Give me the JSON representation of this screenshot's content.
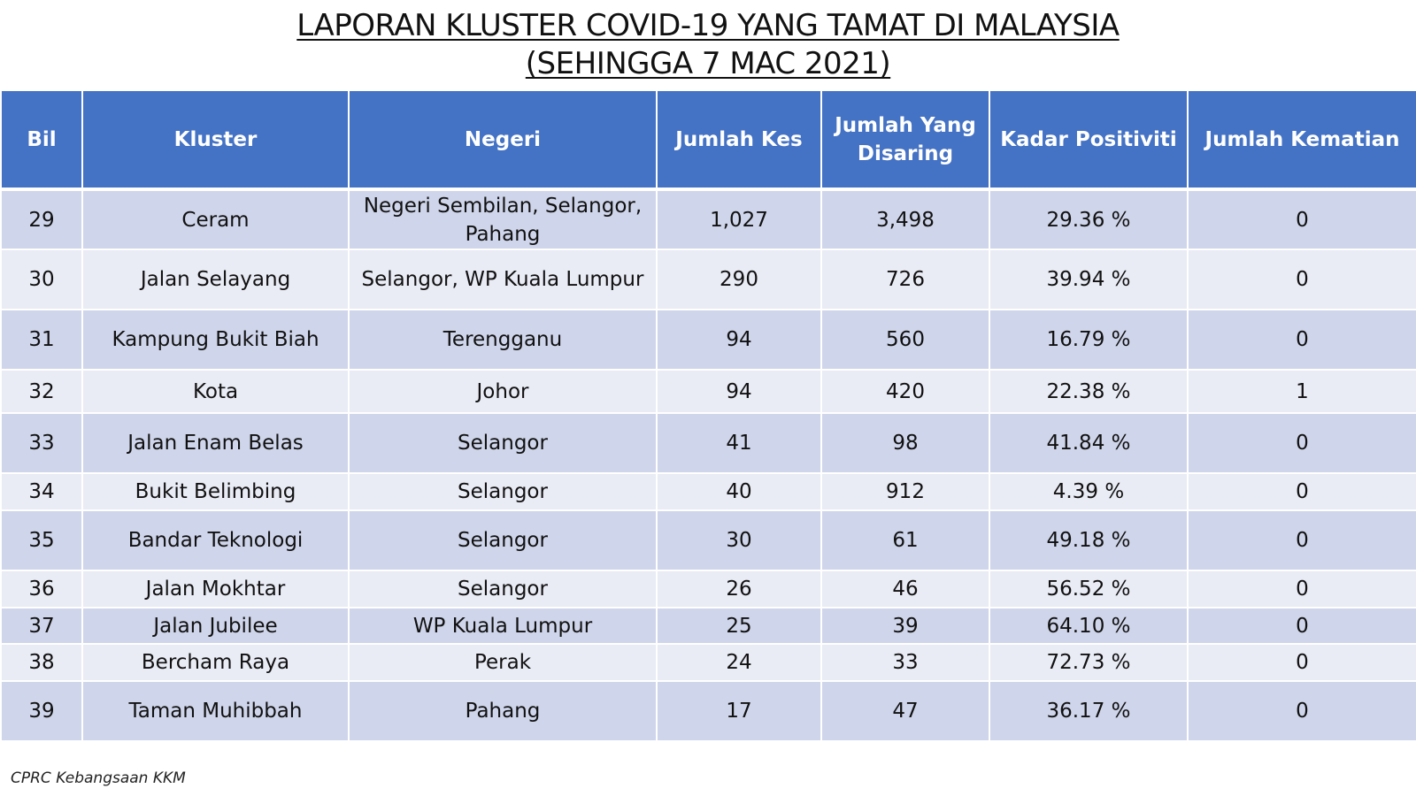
{
  "title": {
    "line1": "LAPORAN KLUSTER COVID-19 YANG TAMAT DI MALAYSIA",
    "line2": "(SEHINGGA  7 MAC 2021)"
  },
  "table": {
    "headers": {
      "bil": "Bil",
      "kluster": "Kluster",
      "negeri": "Negeri",
      "jumlah_kes": "Jumlah Kes",
      "jumlah_disaring": "Jumlah Yang Disaring",
      "kadar_positiviti": "Kadar Positiviti",
      "jumlah_kematian": "Jumlah Kematian"
    },
    "rows": [
      {
        "bil": "29",
        "kluster": "Ceram",
        "negeri": "Negeri Sembilan, Selangor, Pahang",
        "kes": "1,027",
        "disaring": "3,498",
        "positiviti": "29.36 %",
        "kematian": "0"
      },
      {
        "bil": "30",
        "kluster": "Jalan Selayang",
        "negeri": "Selangor, WP Kuala Lumpur",
        "kes": "290",
        "disaring": "726",
        "positiviti": "39.94 %",
        "kematian": "0"
      },
      {
        "bil": "31",
        "kluster": "Kampung Bukit Biah",
        "negeri": "Terengganu",
        "kes": "94",
        "disaring": "560",
        "positiviti": "16.79 %",
        "kematian": "0"
      },
      {
        "bil": "32",
        "kluster": "Kota",
        "negeri": "Johor",
        "kes": "94",
        "disaring": "420",
        "positiviti": "22.38 %",
        "kematian": "1"
      },
      {
        "bil": "33",
        "kluster": "Jalan Enam Belas",
        "negeri": "Selangor",
        "kes": "41",
        "disaring": "98",
        "positiviti": "41.84 %",
        "kematian": "0"
      },
      {
        "bil": "34",
        "kluster": "Bukit Belimbing",
        "negeri": "Selangor",
        "kes": "40",
        "disaring": "912",
        "positiviti": "4.39 %",
        "kematian": "0"
      },
      {
        "bil": "35",
        "kluster": "Bandar Teknologi",
        "negeri": "Selangor",
        "kes": "30",
        "disaring": "61",
        "positiviti": "49.18 %",
        "kematian": "0"
      },
      {
        "bil": "36",
        "kluster": "Jalan Mokhtar",
        "negeri": "Selangor",
        "kes": "26",
        "disaring": "46",
        "positiviti": "56.52 %",
        "kematian": "0"
      },
      {
        "bil": "37",
        "kluster": "Jalan Jubilee",
        "negeri": "WP Kuala Lumpur",
        "kes": "25",
        "disaring": "39",
        "positiviti": "64.10 %",
        "kematian": "0"
      },
      {
        "bil": "38",
        "kluster": "Bercham Raya",
        "negeri": "Perak",
        "kes": "24",
        "disaring": "33",
        "positiviti": "72.73 %",
        "kematian": "0"
      },
      {
        "bil": "39",
        "kluster": "Taman Muhibbah",
        "negeri": "Pahang",
        "kes": "17",
        "disaring": "47",
        "positiviti": "36.17 %",
        "kematian": "0"
      }
    ]
  },
  "footer": {
    "source": "CPRC Kebangsaan KKM"
  },
  "colors": {
    "header_bg": "#4472c4",
    "row_odd": "#cfd5ea",
    "row_even": "#e9ebf5"
  }
}
